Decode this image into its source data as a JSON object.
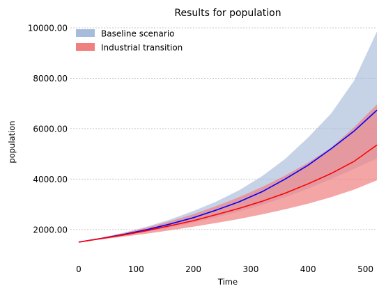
{
  "chart_data": {
    "type": "area",
    "title": "Results for population",
    "xlabel": "Time",
    "ylabel": "population",
    "xlim": [
      0,
      520
    ],
    "ylim": [
      1000,
      10000
    ],
    "xticks": [
      0,
      100,
      200,
      300,
      400,
      500
    ],
    "xtick_labels": [
      "0",
      "100",
      "200",
      "300",
      "400",
      "500"
    ],
    "yticks": [
      2000,
      4000,
      6000,
      8000,
      10000
    ],
    "ytick_labels": [
      "2000.00",
      "4000.00",
      "6000.00",
      "8000.00",
      "10000.00"
    ],
    "grid": "horizontal-dashed",
    "legend_position": "top-left",
    "x": [
      0,
      40,
      80,
      120,
      160,
      200,
      240,
      280,
      320,
      360,
      400,
      440,
      480,
      520
    ],
    "series": [
      {
        "name": "Baseline scenario",
        "line_color": "#0000ff",
        "band_color": "#a7bcda",
        "mean": [
          1500,
          1650,
          1810,
          2000,
          2220,
          2470,
          2770,
          3100,
          3500,
          4000,
          4550,
          5200,
          5900,
          6730
        ],
        "lower": [
          1500,
          1630,
          1760,
          1910,
          2080,
          2270,
          2490,
          2720,
          2980,
          3280,
          3620,
          4000,
          4400,
          4820
        ],
        "upper": [
          1500,
          1680,
          1880,
          2120,
          2400,
          2730,
          3110,
          3560,
          4120,
          4800,
          5650,
          6600,
          7900,
          9850
        ]
      },
      {
        "name": "Industrial transition",
        "line_color": "#ff0000",
        "band_color": "#f08080",
        "mean": [
          1500,
          1640,
          1790,
          1960,
          2150,
          2350,
          2590,
          2840,
          3120,
          3440,
          3810,
          4220,
          4700,
          5350
        ],
        "lower": [
          1500,
          1610,
          1720,
          1840,
          1970,
          2110,
          2260,
          2420,
          2600,
          2800,
          3020,
          3280,
          3580,
          3950
        ],
        "upper": [
          1500,
          1670,
          1860,
          2080,
          2330,
          2610,
          2930,
          3290,
          3690,
          4140,
          4650,
          5250,
          6050,
          6960
        ]
      }
    ]
  }
}
